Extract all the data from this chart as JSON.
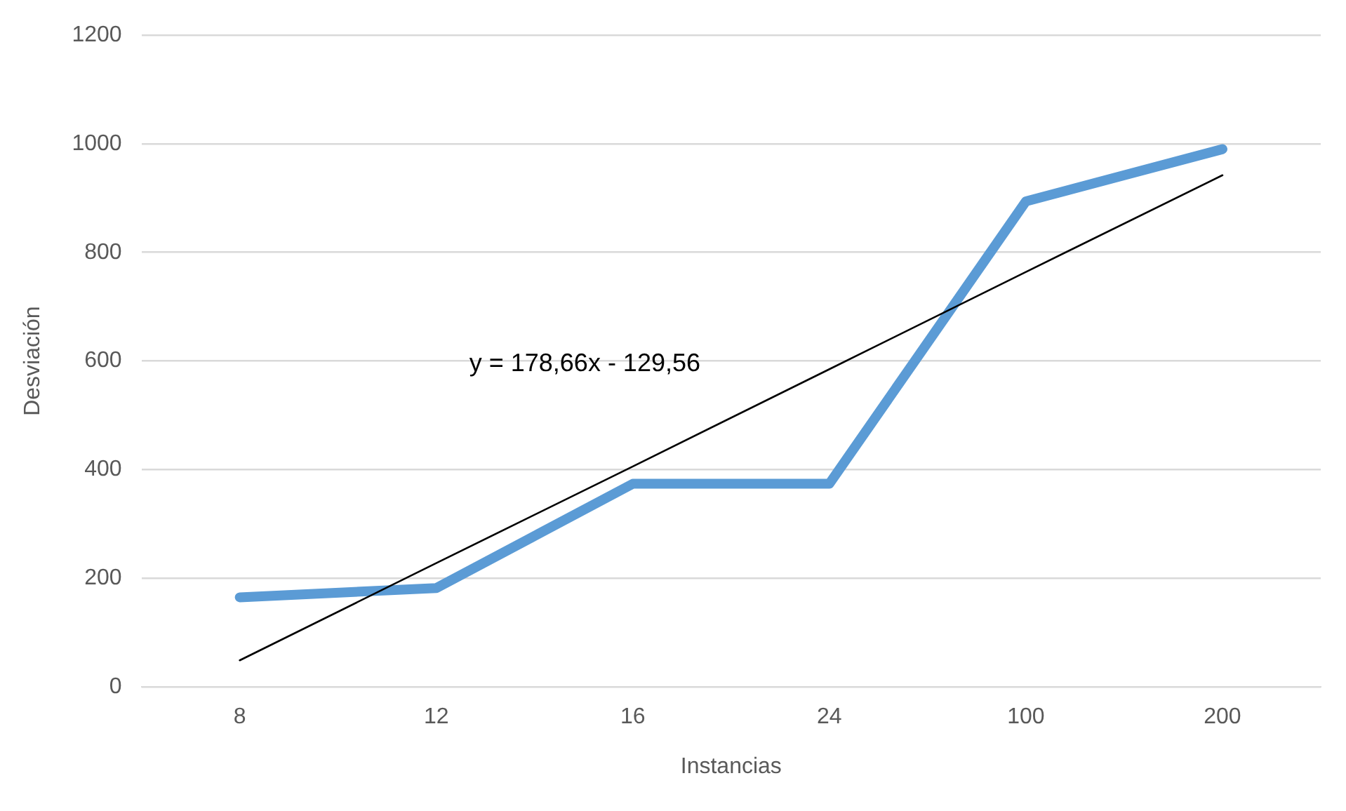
{
  "chart_data": {
    "type": "line",
    "xlabel": "Instancias",
    "ylabel": "Desviación",
    "categories": [
      "8",
      "12",
      "16",
      "24",
      "100",
      "200"
    ],
    "series": [
      {
        "color": "#5b9bd5",
        "values": [
          165,
          182,
          374,
          374,
          894,
          990
        ]
      },
      {
        "type": "line",
        "color": "#000000",
        "values": [
          49,
          228,
          406,
          585,
          764,
          942
        ]
      }
    ],
    "ylim": [
      0,
      1200
    ],
    "yticks": [
      0,
      200,
      400,
      600,
      800,
      1000,
      1200
    ],
    "grid": "y",
    "legend": false,
    "marker": "none",
    "line_style": "solid",
    "annotations": [
      "y = 178,66x - 129,56"
    ]
  }
}
